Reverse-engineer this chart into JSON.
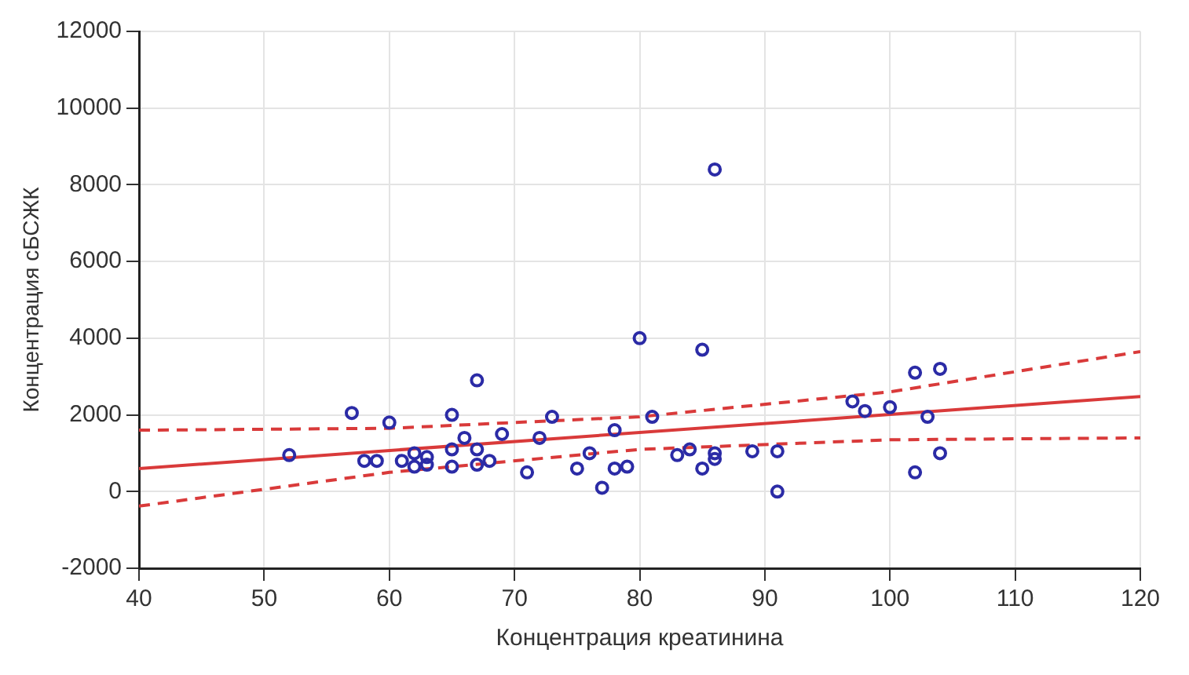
{
  "chart_data": {
    "type": "scatter",
    "xlabel": "Концентрация креатинина",
    "ylabel": "Концентрация сБСЖК",
    "xlim": [
      40,
      120
    ],
    "xticks": [
      40,
      50,
      60,
      70,
      80,
      90,
      100,
      110,
      120
    ],
    "ylim": [
      -2000,
      12000
    ],
    "yticks": [
      -2000,
      0,
      2000,
      4000,
      6000,
      8000,
      10000,
      12000
    ],
    "grid": true,
    "legend": false,
    "series": [
      {
        "color": "#2b2ba6",
        "marker": "circle",
        "x": [
          52,
          57,
          58,
          59,
          60,
          61,
          62,
          62,
          63,
          63,
          65,
          65,
          65,
          66,
          67,
          67,
          67,
          68,
          69,
          71,
          72,
          73,
          75,
          76,
          77,
          78,
          78,
          79,
          80,
          81,
          83,
          84,
          85,
          85,
          86,
          86,
          86,
          89,
          91,
          91,
          97,
          98,
          100,
          102,
          102,
          103,
          104,
          104
        ],
        "values": [
          950,
          2050,
          800,
          800,
          1800,
          800,
          1000,
          650,
          900,
          700,
          2000,
          1100,
          650,
          1400,
          2900,
          1100,
          700,
          800,
          1500,
          500,
          1400,
          1950,
          600,
          1000,
          100,
          1600,
          600,
          650,
          4000,
          1950,
          950,
          1100,
          3700,
          600,
          8400,
          1000,
          850,
          1050,
          1050,
          0,
          2350,
          2100,
          2200,
          3100,
          500,
          1950,
          3200,
          1000
        ]
      },
      {
        "type": "line",
        "color": "#d93a3a",
        "line_style": "solid",
        "x": [
          40,
          120
        ],
        "values": [
          600,
          2480
        ]
      },
      {
        "type": "line",
        "color": "#d93a3a",
        "line_style": "dashed",
        "x": [
          40,
          60,
          80,
          100,
          120
        ],
        "values": [
          1600,
          1650,
          1950,
          2600,
          3650
        ]
      },
      {
        "type": "line",
        "color": "#d93a3a",
        "line_style": "dashed",
        "x": [
          40,
          60,
          80,
          100,
          120
        ],
        "values": [
          -380,
          500,
          1100,
          1350,
          1400
        ]
      }
    ]
  }
}
